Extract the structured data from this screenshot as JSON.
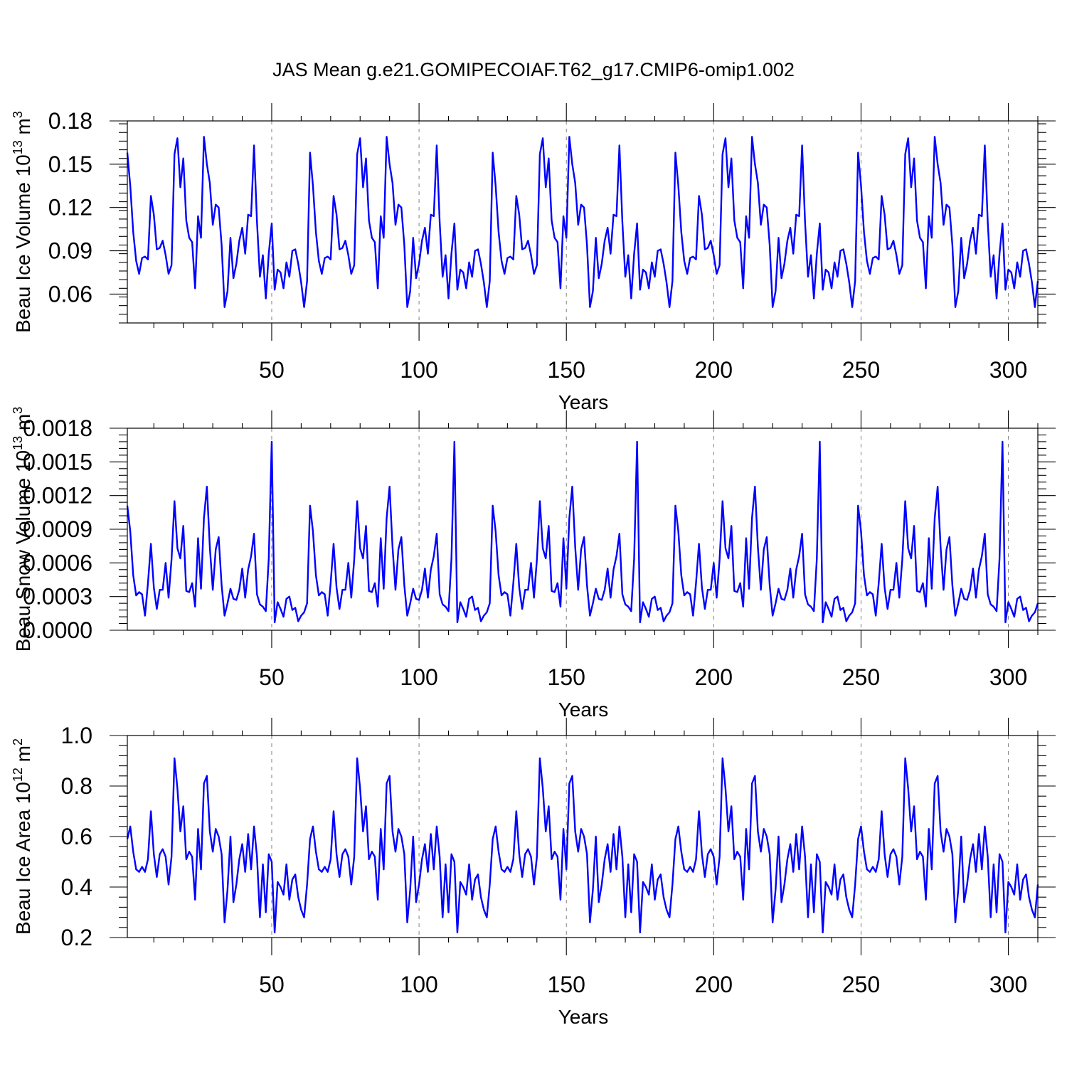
{
  "chart_data": {
    "title": "JAS Mean g.e21.GOMIPECOIAF.T62_g17.CMIP6-omip1.002",
    "panels": [
      {
        "type": "line",
        "ylabel": "Beau Ice Volume 10",
        "ylabel_sup": "13",
        "ylabel_unit": "m",
        "ylabel_unit_sup": "3",
        "xlabel": "Years",
        "xlim": [
          1,
          310
        ],
        "ylim": [
          0.04,
          0.18
        ],
        "yticks": [
          0.06,
          0.09,
          0.12,
          0.15,
          0.18
        ],
        "ytick_labels": [
          "0.06",
          "0.09",
          "0.12",
          "0.15",
          "0.18"
        ],
        "xticks": [
          50,
          100,
          150,
          200,
          250,
          300
        ],
        "xtick_labels": [
          "50",
          "100",
          "150",
          "200",
          "250",
          "300"
        ],
        "series_color": "#0000ff",
        "cycle_period": 62,
        "x": [
          1,
          310
        ],
        "cycle_values": [
          0.158,
          0.135,
          0.103,
          0.083,
          0.074,
          0.085,
          0.086,
          0.084,
          0.128,
          0.115,
          0.091,
          0.092,
          0.097,
          0.087,
          0.074,
          0.08,
          0.157,
          0.168,
          0.134,
          0.154,
          0.111,
          0.099,
          0.096,
          0.064,
          0.114,
          0.099,
          0.169,
          0.15,
          0.137,
          0.108,
          0.122,
          0.12,
          0.094,
          0.051,
          0.062,
          0.099,
          0.071,
          0.081,
          0.097,
          0.106,
          0.088,
          0.115,
          0.114,
          0.163,
          0.11,
          0.072,
          0.087,
          0.057,
          0.088,
          0.109,
          0.063,
          0.077,
          0.075,
          0.064,
          0.082,
          0.072,
          0.09,
          0.091,
          0.081,
          0.068,
          0.051,
          0.069
        ]
      },
      {
        "type": "line",
        "ylabel": "Beau Snow Volume 10",
        "ylabel_sup": "13",
        "ylabel_unit": "m",
        "ylabel_unit_sup": "3",
        "xlabel": "Years",
        "xlim": [
          1,
          310
        ],
        "ylim": [
          0.0,
          0.0018
        ],
        "yticks": [
          0.0,
          0.0003,
          0.0006,
          0.0009,
          0.0012,
          0.0015,
          0.0018
        ],
        "ytick_labels": [
          "0.0000",
          "0.0003",
          "0.0006",
          "0.0009",
          "0.0012",
          "0.0015",
          "0.0018"
        ],
        "xticks": [
          50,
          100,
          150,
          200,
          250,
          300
        ],
        "xtick_labels": [
          "50",
          "100",
          "150",
          "200",
          "250",
          "300"
        ],
        "series_color": "#0000ff",
        "cycle_period": 62,
        "x": [
          1,
          310
        ],
        "cycle_values": [
          0.00111,
          0.00088,
          0.00049,
          0.00031,
          0.00034,
          0.00032,
          0.00013,
          0.00042,
          0.00077,
          0.00038,
          0.00019,
          0.00036,
          0.00036,
          0.0006,
          0.00029,
          0.00063,
          0.00115,
          0.00073,
          0.00064,
          0.00093,
          0.00035,
          0.00034,
          0.00042,
          0.00021,
          0.00082,
          0.00037,
          0.001,
          0.00128,
          0.00074,
          0.00036,
          0.00072,
          0.00083,
          0.0004,
          0.00013,
          0.00024,
          0.00037,
          0.00028,
          0.00027,
          0.00036,
          0.00055,
          0.00029,
          0.00054,
          0.00066,
          0.00086,
          0.00032,
          0.00023,
          0.00021,
          0.00017,
          0.00064,
          0.00168,
          7e-05,
          0.00025,
          0.00019,
          0.00012,
          0.00028,
          0.0003,
          0.00018,
          0.0002,
          8e-05,
          0.00013,
          0.00016,
          0.00024
        ]
      },
      {
        "type": "line",
        "ylabel": "Beau Ice Area 10",
        "ylabel_sup": "12",
        "ylabel_unit": "m",
        "ylabel_unit_sup": "2",
        "xlabel": "Years",
        "xlim": [
          1,
          310
        ],
        "ylim": [
          0.2,
          1.0
        ],
        "yticks": [
          0.2,
          0.4,
          0.6,
          0.8,
          1.0
        ],
        "ytick_labels": [
          "0.2",
          "0.4",
          "0.6",
          "0.8",
          "1.0"
        ],
        "xticks": [
          50,
          100,
          150,
          200,
          250,
          300
        ],
        "xtick_labels": [
          "50",
          "100",
          "150",
          "200",
          "250",
          "300"
        ],
        "series_color": "#0000ff",
        "cycle_period": 62,
        "x": [
          1,
          310
        ],
        "cycle_values": [
          0.59,
          0.64,
          0.54,
          0.47,
          0.46,
          0.48,
          0.46,
          0.51,
          0.7,
          0.53,
          0.44,
          0.53,
          0.55,
          0.52,
          0.41,
          0.52,
          0.91,
          0.79,
          0.62,
          0.72,
          0.51,
          0.54,
          0.52,
          0.35,
          0.63,
          0.47,
          0.81,
          0.84,
          0.62,
          0.54,
          0.63,
          0.6,
          0.53,
          0.26,
          0.39,
          0.6,
          0.34,
          0.41,
          0.51,
          0.57,
          0.46,
          0.61,
          0.47,
          0.64,
          0.52,
          0.28,
          0.49,
          0.3,
          0.53,
          0.5,
          0.22,
          0.42,
          0.4,
          0.37,
          0.49,
          0.35,
          0.43,
          0.45,
          0.36,
          0.31,
          0.28,
          0.41
        ]
      }
    ]
  }
}
